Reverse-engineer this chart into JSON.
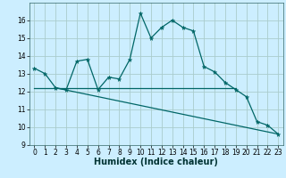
{
  "xlabel": "Humidex (Indice chaleur)",
  "bg_color": "#cceeff",
  "grid_color": "#aacccc",
  "line_color": "#006666",
  "xlim": [
    -0.5,
    23.5
  ],
  "ylim": [
    9,
    17
  ],
  "yticks": [
    9,
    10,
    11,
    12,
    13,
    14,
    15,
    16
  ],
  "xticks": [
    0,
    1,
    2,
    3,
    4,
    5,
    6,
    7,
    8,
    9,
    10,
    11,
    12,
    13,
    14,
    15,
    16,
    17,
    18,
    19,
    20,
    21,
    22,
    23
  ],
  "series1_x": [
    0,
    1,
    2,
    3,
    4,
    5,
    6,
    7,
    8,
    9,
    10,
    11,
    12,
    13,
    14,
    15,
    16,
    17,
    18,
    19,
    20,
    21,
    22,
    23
  ],
  "series1_y": [
    13.3,
    13.0,
    12.2,
    12.1,
    13.7,
    13.8,
    12.1,
    12.8,
    12.7,
    13.8,
    16.4,
    15.0,
    15.6,
    16.0,
    15.6,
    15.4,
    13.4,
    13.1,
    12.5,
    12.1,
    11.7,
    10.3,
    10.1,
    9.6
  ],
  "series2_x": [
    0,
    19
  ],
  "series2_y": [
    12.2,
    12.2
  ],
  "series3_x": [
    2,
    23
  ],
  "series3_y": [
    12.2,
    9.6
  ],
  "tick_fontsize": 5.5,
  "xlabel_fontsize": 7
}
